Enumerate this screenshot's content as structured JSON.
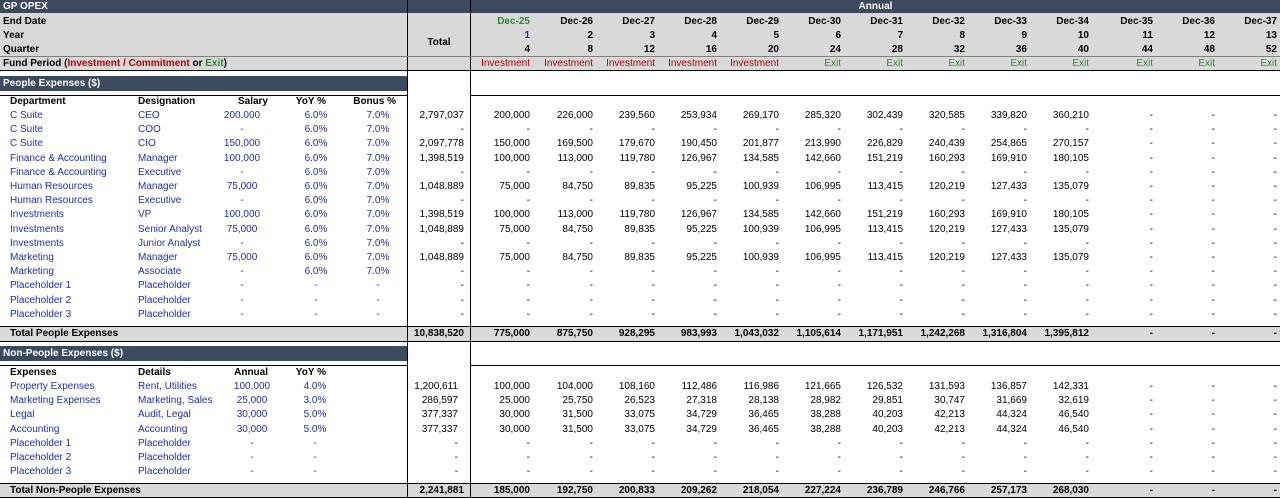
{
  "header": {
    "title": "GP OPEX",
    "annual": "Annual",
    "total_label": "Total",
    "row_labels": [
      "End Date",
      "Year",
      "Quarter"
    ],
    "fund_period_label": "Fund Period (",
    "fund_period_inv": "Investment / Commitment",
    "fund_period_or": " or ",
    "fund_period_exit": "Exit",
    "fund_period_close": ")",
    "columns": [
      {
        "date": "Dec-25",
        "year": "1",
        "quarter": "4",
        "period": "Investment"
      },
      {
        "date": "Dec-26",
        "year": "2",
        "quarter": "8",
        "period": "Investment"
      },
      {
        "date": "Dec-27",
        "year": "3",
        "quarter": "12",
        "period": "Investment"
      },
      {
        "date": "Dec-28",
        "year": "4",
        "quarter": "16",
        "period": "Investment"
      },
      {
        "date": "Dec-29",
        "year": "5",
        "quarter": "20",
        "period": "Investment"
      },
      {
        "date": "Dec-30",
        "year": "6",
        "quarter": "24",
        "period": "Exit"
      },
      {
        "date": "Dec-31",
        "year": "7",
        "quarter": "28",
        "period": "Exit"
      },
      {
        "date": "Dec-32",
        "year": "8",
        "quarter": "32",
        "period": "Exit"
      },
      {
        "date": "Dec-33",
        "year": "9",
        "quarter": "36",
        "period": "Exit"
      },
      {
        "date": "Dec-34",
        "year": "10",
        "quarter": "40",
        "period": "Exit"
      },
      {
        "date": "Dec-35",
        "year": "11",
        "quarter": "44",
        "period": "Exit"
      },
      {
        "date": "Dec-36",
        "year": "12",
        "quarter": "48",
        "period": "Exit"
      },
      {
        "date": "Dec-37",
        "year": "13",
        "quarter": "52",
        "period": "Exit"
      }
    ]
  },
  "people": {
    "section_title": "People Expenses ($)",
    "headers": [
      "Department",
      "Designation",
      "Salary",
      "YoY %",
      "Bonus %"
    ],
    "rows": [
      {
        "dept": "C Suite",
        "desig": "CEO",
        "salary": "200,000",
        "yoy": "6.0%",
        "bonus": "7.0%",
        "total": "2,797,037",
        "vals": [
          "200,000",
          "226,000",
          "239,560",
          "253,934",
          "269,170",
          "285,320",
          "302,439",
          "320,585",
          "339,820",
          "360,210",
          "-",
          "-",
          "-"
        ]
      },
      {
        "dept": "C Suite",
        "desig": "COO",
        "salary": "-",
        "yoy": "6.0%",
        "bonus": "7.0%",
        "total": "-",
        "vals": [
          "-",
          "-",
          "-",
          "-",
          "-",
          "-",
          "-",
          "-",
          "-",
          "-",
          "-",
          "-",
          "-"
        ]
      },
      {
        "dept": "C Suite",
        "desig": "CIO",
        "salary": "150,000",
        "yoy": "6.0%",
        "bonus": "7.0%",
        "total": "2,097,778",
        "vals": [
          "150,000",
          "169,500",
          "179,670",
          "190,450",
          "201,877",
          "213,990",
          "226,829",
          "240,439",
          "254,865",
          "270,157",
          "-",
          "-",
          "-"
        ]
      },
      {
        "dept": "Finance & Accounting",
        "desig": "Manager",
        "salary": "100,000",
        "yoy": "6.0%",
        "bonus": "7.0%",
        "total": "1,398,519",
        "vals": [
          "100,000",
          "113,000",
          "119,780",
          "126,967",
          "134,585",
          "142,660",
          "151,219",
          "160,293",
          "169,910",
          "180,105",
          "-",
          "-",
          "-"
        ]
      },
      {
        "dept": "Finance & Accounting",
        "desig": "Executive",
        "salary": "-",
        "yoy": "6.0%",
        "bonus": "7.0%",
        "total": "-",
        "vals": [
          "-",
          "-",
          "-",
          "-",
          "-",
          "-",
          "-",
          "-",
          "-",
          "-",
          "-",
          "-",
          "-"
        ]
      },
      {
        "dept": "Human Resources",
        "desig": "Manager",
        "salary": "75,000",
        "yoy": "6.0%",
        "bonus": "7.0%",
        "total": "1,048,889",
        "vals": [
          "75,000",
          "84,750",
          "89,835",
          "95,225",
          "100,939",
          "106,995",
          "113,415",
          "120,219",
          "127,433",
          "135,079",
          "-",
          "-",
          "-"
        ]
      },
      {
        "dept": "Human Resources",
        "desig": "Executive",
        "salary": "-",
        "yoy": "6.0%",
        "bonus": "7.0%",
        "total": "-",
        "vals": [
          "-",
          "-",
          "-",
          "-",
          "-",
          "-",
          "-",
          "-",
          "-",
          "-",
          "-",
          "-",
          "-"
        ]
      },
      {
        "dept": "Investments",
        "desig": "VP",
        "salary": "100,000",
        "yoy": "6.0%",
        "bonus": "7.0%",
        "total": "1,398,519",
        "vals": [
          "100,000",
          "113,000",
          "119,780",
          "126,967",
          "134,585",
          "142,660",
          "151,219",
          "160,293",
          "169,910",
          "180,105",
          "-",
          "-",
          "-"
        ]
      },
      {
        "dept": "Investments",
        "desig": "Senior Analyst",
        "salary": "75,000",
        "yoy": "6.0%",
        "bonus": "7.0%",
        "total": "1,048,889",
        "vals": [
          "75,000",
          "84,750",
          "89,835",
          "95,225",
          "100,939",
          "106,995",
          "113,415",
          "120,219",
          "127,433",
          "135,079",
          "-",
          "-",
          "-"
        ]
      },
      {
        "dept": "Investments",
        "desig": "Junior Analyst",
        "salary": "-",
        "yoy": "6.0%",
        "bonus": "7.0%",
        "total": "-",
        "vals": [
          "-",
          "-",
          "-",
          "-",
          "-",
          "-",
          "-",
          "-",
          "-",
          "-",
          "-",
          "-",
          "-"
        ]
      },
      {
        "dept": "Marketing",
        "desig": "Manager",
        "salary": "75,000",
        "yoy": "6.0%",
        "bonus": "7.0%",
        "total": "1,048,889",
        "vals": [
          "75,000",
          "84,750",
          "89,835",
          "95,225",
          "100,939",
          "106,995",
          "113,415",
          "120,219",
          "127,433",
          "135,079",
          "-",
          "-",
          "-"
        ]
      },
      {
        "dept": "Marketing",
        "desig": "Associate",
        "salary": "-",
        "yoy": "6.0%",
        "bonus": "7.0%",
        "total": "-",
        "vals": [
          "-",
          "-",
          "-",
          "-",
          "-",
          "-",
          "-",
          "-",
          "-",
          "-",
          "-",
          "-",
          "-"
        ]
      },
      {
        "dept": "Placeholder 1",
        "desig": "Placeholder",
        "salary": "-",
        "yoy": "-",
        "bonus": "-",
        "total": "-",
        "vals": [
          "-",
          "-",
          "-",
          "-",
          "-",
          "-",
          "-",
          "-",
          "-",
          "-",
          "-",
          "-",
          "-"
        ]
      },
      {
        "dept": "Placeholder 2",
        "desig": "Placeholder",
        "salary": "-",
        "yoy": "-",
        "bonus": "-",
        "total": "-",
        "vals": [
          "-",
          "-",
          "-",
          "-",
          "-",
          "-",
          "-",
          "-",
          "-",
          "-",
          "-",
          "-",
          "-"
        ]
      },
      {
        "dept": "Placeholder 3",
        "desig": "Placeholder",
        "salary": "-",
        "yoy": "-",
        "bonus": "-",
        "total": "-",
        "vals": [
          "-",
          "-",
          "-",
          "-",
          "-",
          "-",
          "-",
          "-",
          "-",
          "-",
          "-",
          "-",
          "-"
        ]
      }
    ],
    "total_label": "Total People Expenses",
    "total": "10,838,520",
    "total_vals": [
      "775,000",
      "875,750",
      "928,295",
      "983,993",
      "1,043,032",
      "1,105,614",
      "1,171,951",
      "1,242,268",
      "1,316,804",
      "1,395,812",
      "-",
      "-",
      "-"
    ]
  },
  "nonpeople": {
    "section_title": "Non-People Expenses ($)",
    "headers": [
      "Expenses",
      "Details",
      "Annual",
      "YoY %"
    ],
    "rows": [
      {
        "exp": "Property Expenses",
        "details": "Rent, Utilities",
        "annual": "100,000",
        "yoy": "4.0%",
        "total": "1,200,611",
        "vals": [
          "100,000",
          "104,000",
          "108,160",
          "112,486",
          "116,986",
          "121,665",
          "126,532",
          "131,593",
          "136,857",
          "142,331",
          "-",
          "-",
          "-"
        ]
      },
      {
        "exp": "Marketing Expenses",
        "details": "Marketing, Sales",
        "annual": "25,000",
        "yoy": "3.0%",
        "total": "286,597",
        "vals": [
          "25,000",
          "25,750",
          "26,523",
          "27,318",
          "28,138",
          "28,982",
          "29,851",
          "30,747",
          "31,669",
          "32,619",
          "-",
          "-",
          "-"
        ]
      },
      {
        "exp": "Legal",
        "details": "Audit, Legal",
        "annual": "30,000",
        "yoy": "5.0%",
        "total": "377,337",
        "vals": [
          "30,000",
          "31,500",
          "33,075",
          "34,729",
          "36,465",
          "38,288",
          "40,203",
          "42,213",
          "44,324",
          "46,540",
          "-",
          "-",
          "-"
        ]
      },
      {
        "exp": "Accounting",
        "details": "Accounting",
        "annual": "30,000",
        "yoy": "5.0%",
        "total": "377,337",
        "vals": [
          "30,000",
          "31,500",
          "33,075",
          "34,729",
          "36,465",
          "38,288",
          "40,203",
          "42,213",
          "44,324",
          "46,540",
          "-",
          "-",
          "-"
        ]
      },
      {
        "exp": "Placeholder 1",
        "details": "Placeholder",
        "annual": "-",
        "yoy": "-",
        "total": "-",
        "vals": [
          "-",
          "-",
          "-",
          "-",
          "-",
          "-",
          "-",
          "-",
          "-",
          "-",
          "-",
          "-",
          "-"
        ]
      },
      {
        "exp": "Placeholder 2",
        "details": "Placeholder",
        "annual": "-",
        "yoy": "-",
        "total": "-",
        "vals": [
          "-",
          "-",
          "-",
          "-",
          "-",
          "-",
          "-",
          "-",
          "-",
          "-",
          "-",
          "-",
          "-"
        ]
      },
      {
        "exp": "Placeholder 3",
        "details": "Placeholder",
        "annual": "-",
        "yoy": "-",
        "total": "-",
        "vals": [
          "-",
          "-",
          "-",
          "-",
          "-",
          "-",
          "-",
          "-",
          "-",
          "-",
          "-",
          "-",
          "-"
        ]
      }
    ],
    "total_label": "Total Non-People Expenses",
    "total": "2,241,881",
    "total_vals": [
      "185,000",
      "192,750",
      "200,833",
      "209,262",
      "218,054",
      "227,224",
      "236,789",
      "246,766",
      "257,173",
      "268,030",
      "-",
      "-",
      "-"
    ]
  }
}
